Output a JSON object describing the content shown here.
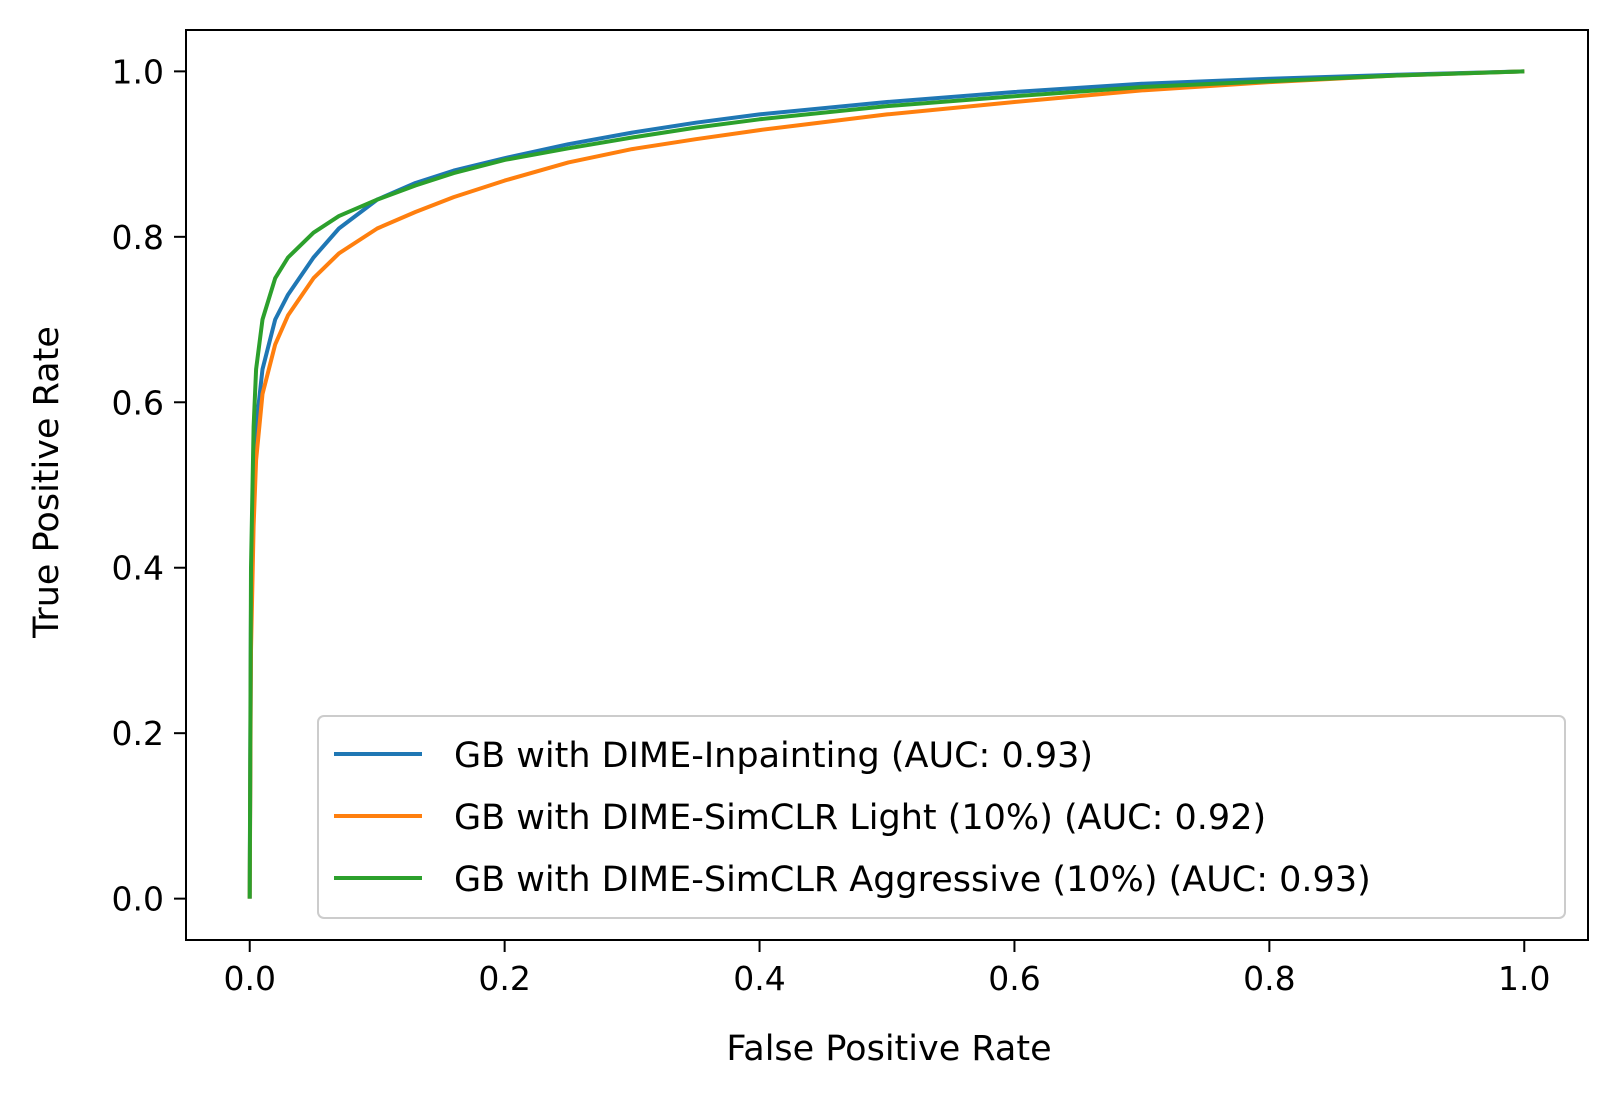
{
  "chart_data": {
    "type": "line",
    "title": "",
    "xlabel": "False Positive Rate",
    "ylabel": "True Positive Rate",
    "xlim": [
      -0.05,
      1.05
    ],
    "ylim": [
      -0.05,
      1.05
    ],
    "xticks": [
      0.0,
      0.2,
      0.4,
      0.6,
      0.8,
      1.0
    ],
    "yticks": [
      0.0,
      0.2,
      0.4,
      0.6,
      0.8,
      1.0
    ],
    "xtick_labels": [
      "0.0",
      "0.2",
      "0.4",
      "0.6",
      "0.8",
      "1.0"
    ],
    "ytick_labels": [
      "0.0",
      "0.2",
      "0.4",
      "0.6",
      "0.8",
      "1.0"
    ],
    "grid": false,
    "legend_position": "lower-right",
    "series": [
      {
        "name": "GB with DIME-Inpainting (AUC: 0.93)",
        "color": "#1f77b4",
        "x": [
          0,
          0.001,
          0.003,
          0.005,
          0.01,
          0.02,
          0.03,
          0.05,
          0.07,
          0.1,
          0.13,
          0.16,
          0.2,
          0.25,
          0.3,
          0.35,
          0.4,
          0.5,
          0.6,
          0.7,
          0.8,
          0.9,
          1.0
        ],
        "y": [
          0,
          0.35,
          0.5,
          0.57,
          0.64,
          0.7,
          0.73,
          0.775,
          0.81,
          0.845,
          0.865,
          0.88,
          0.895,
          0.912,
          0.926,
          0.938,
          0.948,
          0.963,
          0.975,
          0.985,
          0.991,
          0.996,
          1.0
        ]
      },
      {
        "name": "GB with DIME-SimCLR Light (10%) (AUC: 0.92)",
        "color": "#ff7f0e",
        "x": [
          0,
          0.001,
          0.003,
          0.005,
          0.01,
          0.02,
          0.03,
          0.05,
          0.07,
          0.1,
          0.13,
          0.16,
          0.2,
          0.25,
          0.3,
          0.35,
          0.4,
          0.5,
          0.6,
          0.7,
          0.8,
          0.9,
          1.0
        ],
        "y": [
          0,
          0.3,
          0.45,
          0.53,
          0.61,
          0.67,
          0.705,
          0.75,
          0.78,
          0.81,
          0.83,
          0.848,
          0.868,
          0.89,
          0.906,
          0.918,
          0.929,
          0.948,
          0.963,
          0.977,
          0.987,
          0.995,
          1.0
        ]
      },
      {
        "name": "GB with DIME-SimCLR Aggressive (10%) (AUC: 0.93)",
        "color": "#2ca02c",
        "x": [
          0,
          0.001,
          0.003,
          0.005,
          0.01,
          0.02,
          0.03,
          0.05,
          0.07,
          0.1,
          0.13,
          0.16,
          0.2,
          0.25,
          0.3,
          0.35,
          0.4,
          0.5,
          0.6,
          0.7,
          0.8,
          0.9,
          1.0
        ],
        "y": [
          0,
          0.4,
          0.57,
          0.64,
          0.7,
          0.75,
          0.775,
          0.805,
          0.825,
          0.845,
          0.862,
          0.877,
          0.893,
          0.907,
          0.92,
          0.932,
          0.942,
          0.958,
          0.97,
          0.981,
          0.988,
          0.995,
          1.0
        ]
      }
    ]
  }
}
